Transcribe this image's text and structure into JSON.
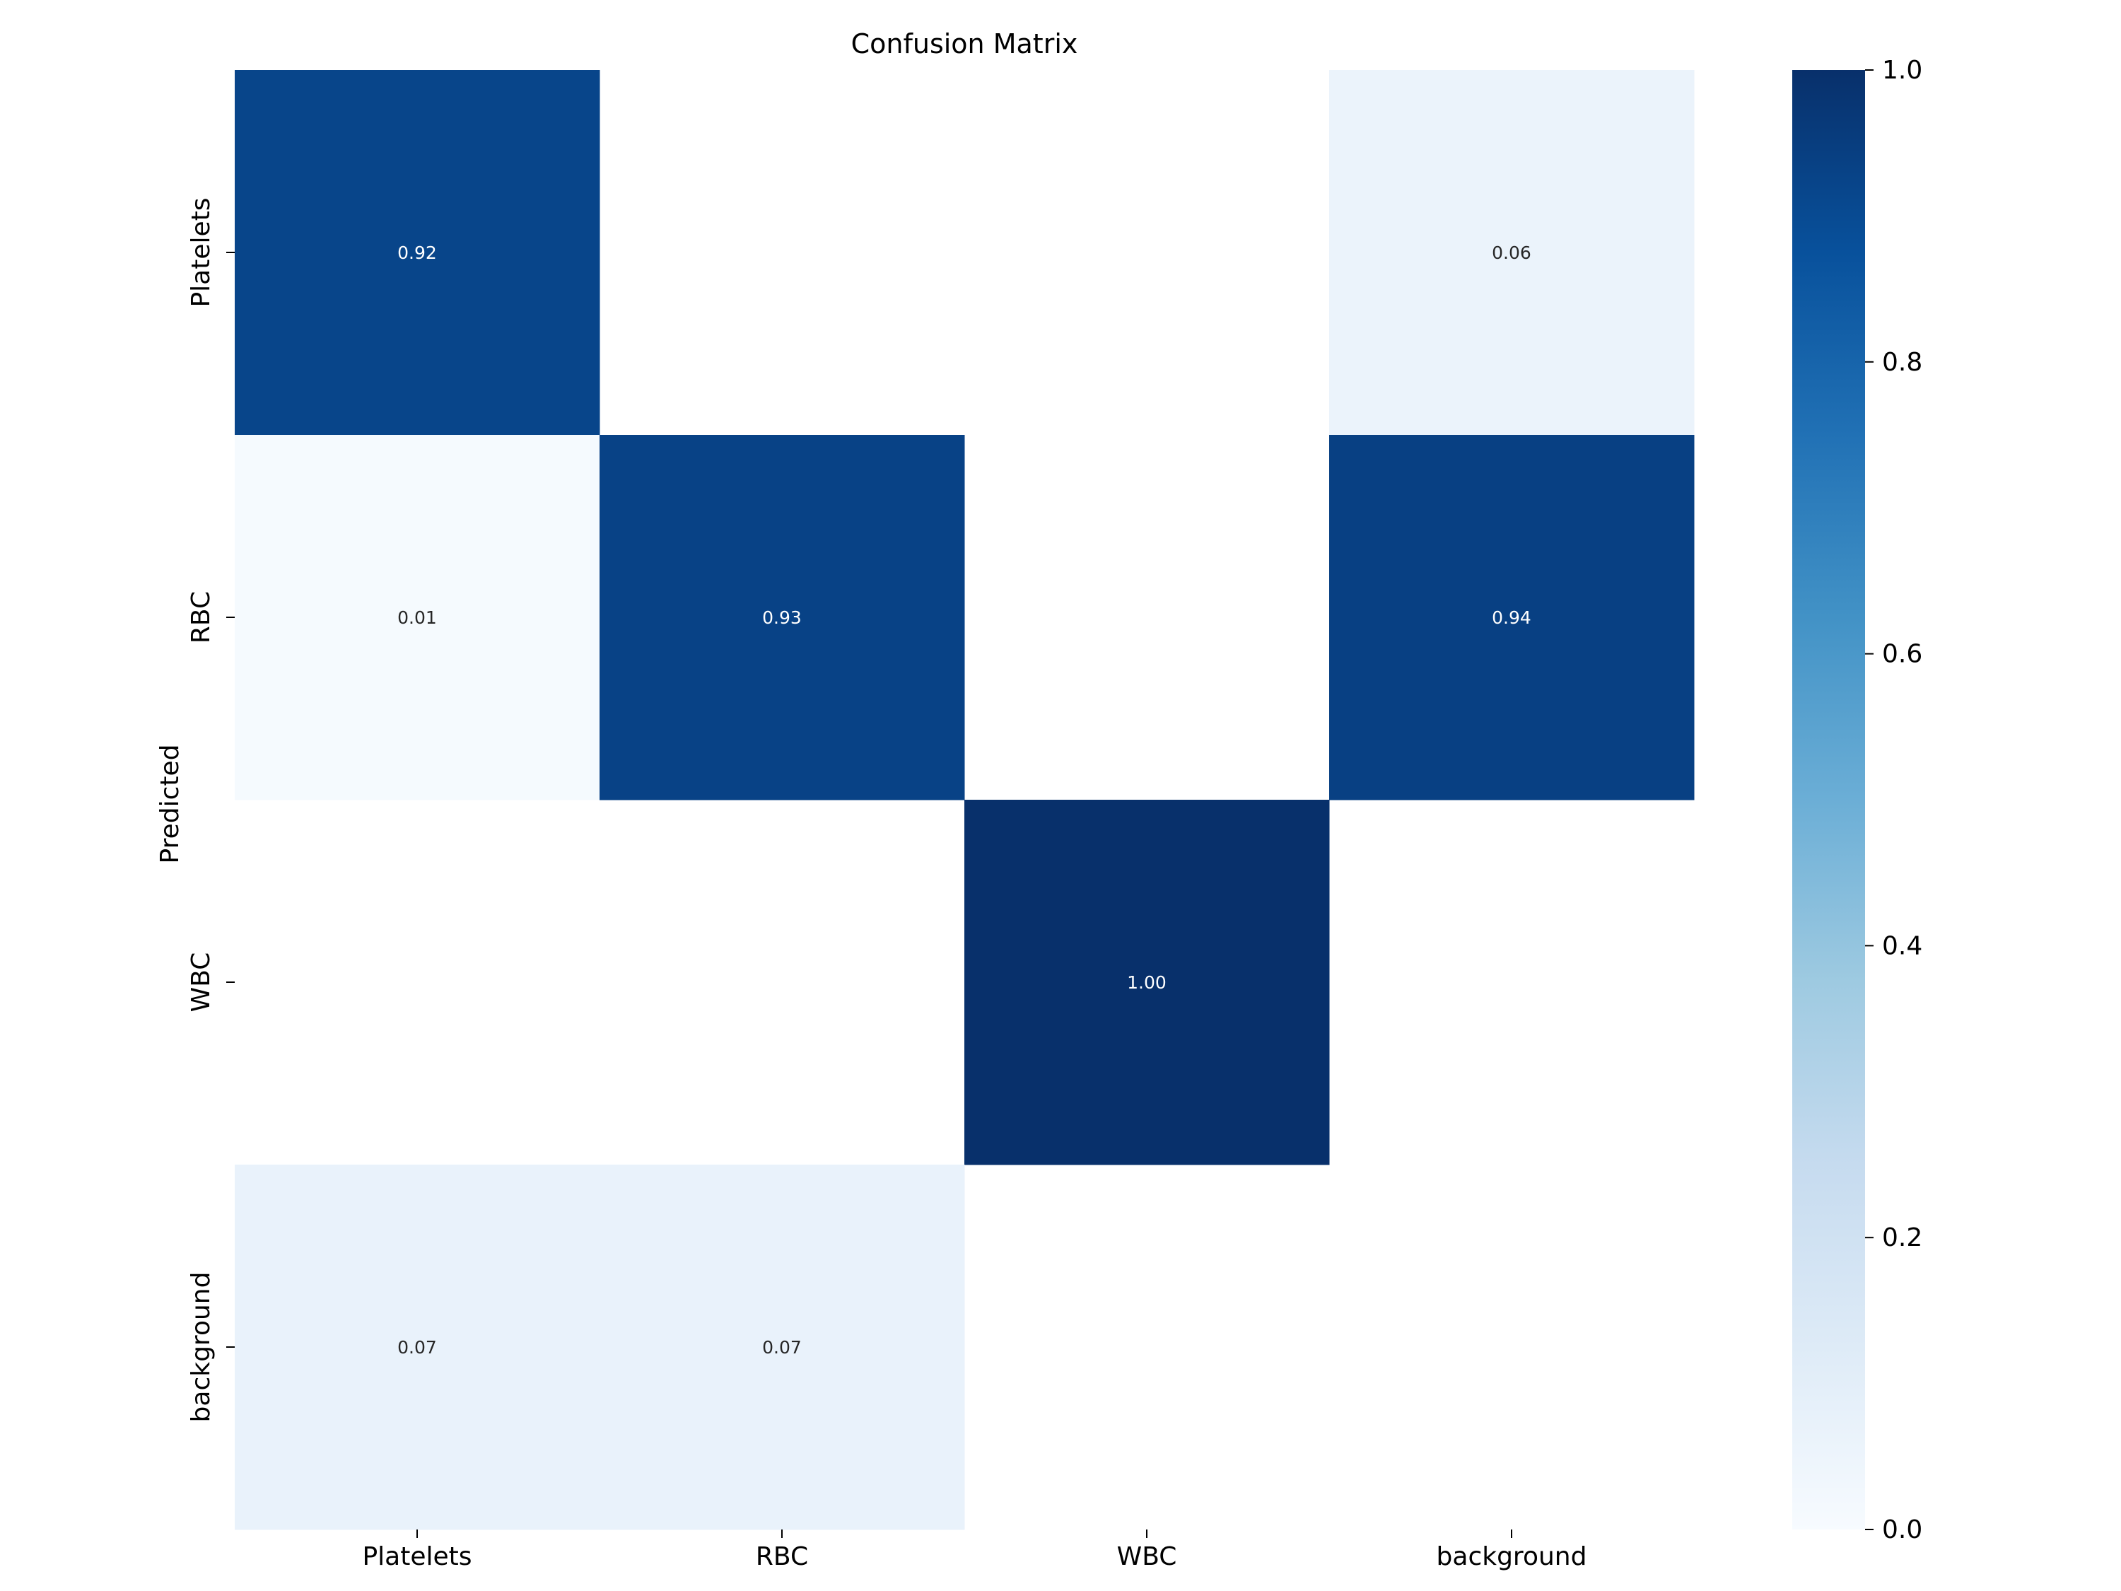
{
  "chart_data": {
    "type": "heatmap",
    "title": "Confusion Matrix",
    "xlabel": "",
    "ylabel": "Predicted",
    "x_categories": [
      "Platelets",
      "RBC",
      "WBC",
      "background"
    ],
    "y_categories": [
      "Platelets",
      "RBC",
      "WBC",
      "background"
    ],
    "values": [
      [
        0.92,
        null,
        null,
        0.06
      ],
      [
        0.01,
        0.93,
        null,
        0.94
      ],
      [
        null,
        null,
        1.0,
        null
      ],
      [
        0.07,
        0.07,
        null,
        null
      ]
    ],
    "value_labels": [
      [
        "0.92",
        "",
        "",
        "0.06"
      ],
      [
        "0.01",
        "0.93",
        "",
        "0.94"
      ],
      [
        "",
        "",
        "1.00",
        ""
      ],
      [
        "0.07",
        "0.07",
        "",
        ""
      ]
    ],
    "colormap": "Blues",
    "vmin": 0.0,
    "vmax": 1.0,
    "colorbar_ticks": [
      "0.0",
      "0.2",
      "0.4",
      "0.6",
      "0.8",
      "1.0"
    ],
    "grid": false,
    "colorbar_position": "right"
  }
}
